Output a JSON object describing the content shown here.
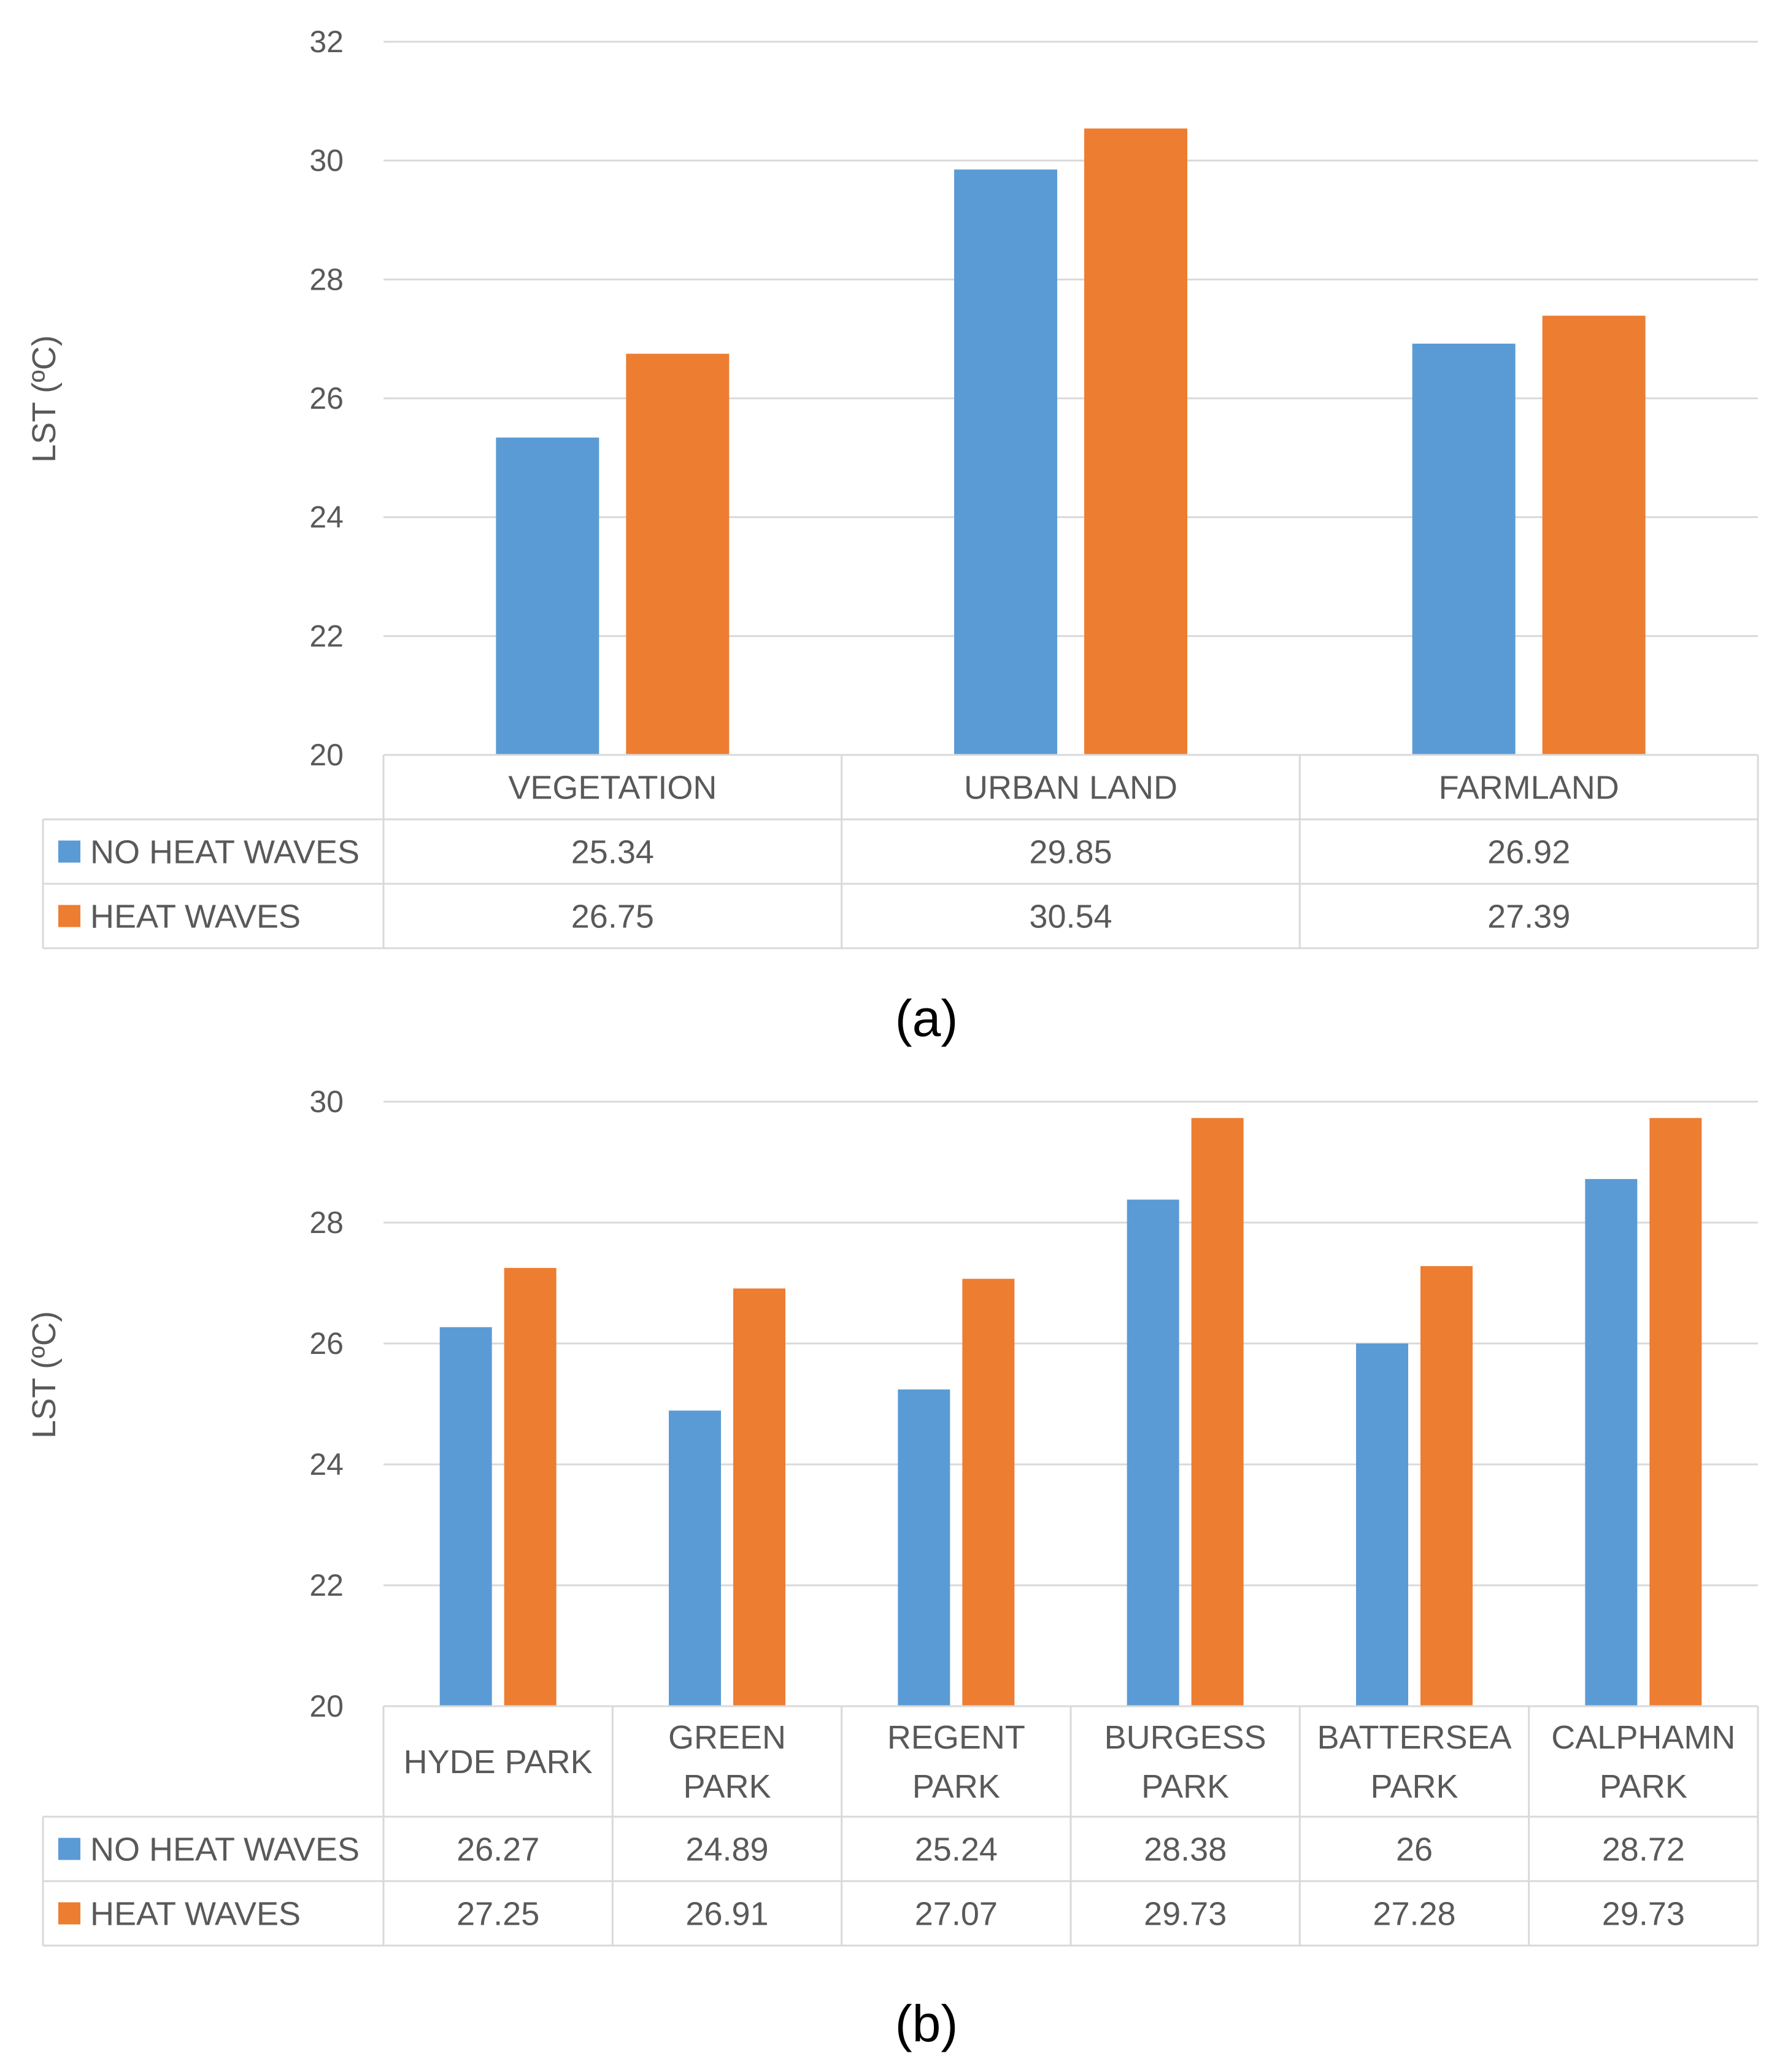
{
  "colors": {
    "no_heat_waves": "#5B9BD5",
    "heat_waves": "#ED7D31",
    "grid": "#D9D9D9",
    "text": "#595959"
  },
  "chart_data": [
    {
      "type": "bar",
      "caption": "(a)",
      "ylabel": "LST (ºC)",
      "ylim": [
        20,
        32
      ],
      "yticks": [
        "20",
        "22",
        "24",
        "26",
        "28",
        "30",
        "32"
      ],
      "categories": [
        [
          "VEGETATION"
        ],
        [
          "URBAN LAND"
        ],
        [
          "FARMLAND"
        ]
      ],
      "series": [
        {
          "name": "NO HEAT WAVES",
          "values": [
            25.34,
            29.85,
            26.92
          ],
          "labels": [
            "25.34",
            "29.85",
            "26.92"
          ]
        },
        {
          "name": "HEAT WAVES",
          "values": [
            26.75,
            30.54,
            27.39
          ],
          "labels": [
            "26.75",
            "30.54",
            "27.39"
          ]
        }
      ],
      "legend": "data table"
    },
    {
      "type": "bar",
      "caption": "(b)",
      "ylabel": "LST (ºC)",
      "ylim": [
        20,
        30
      ],
      "yticks": [
        "20",
        "22",
        "24",
        "26",
        "28",
        "30"
      ],
      "categories": [
        [
          "HYDE PARK"
        ],
        [
          "GREEN",
          "PARK"
        ],
        [
          "REGENT",
          "PARK"
        ],
        [
          "BURGESS",
          "PARK"
        ],
        [
          "BATTERSEA",
          "PARK"
        ],
        [
          "CALPHAMN",
          "PARK"
        ]
      ],
      "series": [
        {
          "name": "NO HEAT WAVES",
          "values": [
            26.27,
            24.89,
            25.24,
            28.38,
            26,
            28.72
          ],
          "labels": [
            "26.27",
            "24.89",
            "25.24",
            "28.38",
            "26",
            "28.72"
          ]
        },
        {
          "name": "HEAT WAVES",
          "values": [
            27.25,
            26.91,
            27.07,
            29.73,
            27.28,
            29.73
          ],
          "labels": [
            "27.25",
            "26.91",
            "27.07",
            "29.73",
            "27.28",
            "29.73"
          ]
        }
      ],
      "legend": "data table"
    }
  ]
}
